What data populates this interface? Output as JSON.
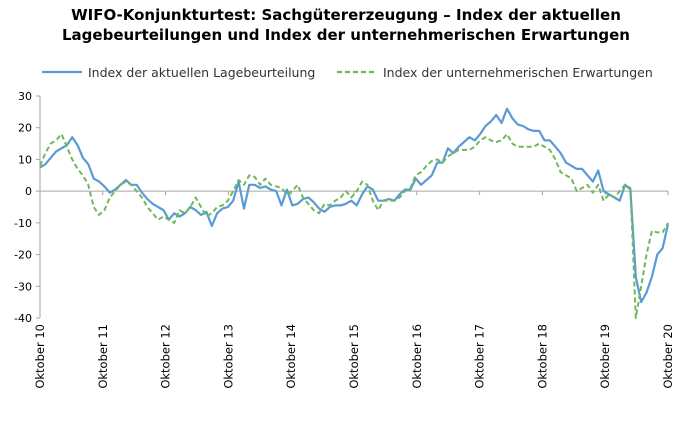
{
  "chart_data": {
    "type": "line",
    "title": "WIFO-Konjunkturtest: Sachgütererzeugung – Index der aktuellen Lagebeurteilungen und Index der unternehmerischen Erwartungen",
    "title_lines": [
      "WIFO-Konjunkturtest: Sachgütererzeugung – Index der aktuellen",
      "Lagebeurteilungen und Index der unternehmerischen Erwartungen"
    ],
    "xlabel": "",
    "ylabel": "",
    "ylim": [
      -40,
      30
    ],
    "yticks": [
      30,
      20,
      10,
      0,
      -10,
      -20,
      -30,
      -40
    ],
    "x_tick_labels": [
      "Oktober 10",
      "Oktober 11",
      "Oktober 12",
      "Oktober 13",
      "Oktober 14",
      "Oktober 15",
      "Oktober 16",
      "Oktober 17",
      "Oktober 18",
      "Oktober 19",
      "Oktober 20"
    ],
    "x_range_months": "Oktober 2010 – Oktober 2020 (monatlich)",
    "grid": false,
    "legend_position": "top",
    "series": [
      {
        "name": "Index der aktuellen Lagebeurteilung",
        "color": "#5b9bd5",
        "dash": "solid",
        "values": [
          7.5,
          8.5,
          10.5,
          12.5,
          13.5,
          14.5,
          17,
          14.5,
          10.5,
          8.5,
          4,
          3,
          1.5,
          -0.5,
          0.5,
          2,
          3.5,
          2,
          2,
          -0.5,
          -2.5,
          -4,
          -5,
          -6,
          -9,
          -7,
          -8,
          -7,
          -5,
          -6,
          -7.5,
          -6.5,
          -11,
          -7,
          -5.5,
          -5,
          -3,
          3,
          -5.5,
          2,
          2,
          1,
          1.5,
          0.5,
          0,
          -4.5,
          0.5,
          -4.5,
          -4,
          -2.5,
          -2,
          -3.5,
          -5.5,
          -6.5,
          -5,
          -4.5,
          -4.5,
          -4,
          -3,
          -4.5,
          -1,
          1.5,
          0.5,
          -3,
          -3,
          -2.5,
          -3,
          -1,
          0.5,
          0.5,
          4,
          2,
          3.5,
          5,
          9,
          9,
          13.5,
          12,
          14,
          15.5,
          17,
          16,
          18,
          20.5,
          22,
          24,
          21.5,
          26,
          23,
          21,
          20.5,
          19.5,
          19,
          19,
          16,
          16,
          14,
          12,
          9,
          8,
          7,
          7,
          5,
          3,
          6.5,
          0,
          -1,
          -2,
          -3,
          2,
          0.5,
          -27,
          -35,
          -32,
          -27,
          -20,
          -18,
          -10.5
        ]
      },
      {
        "name": "Index der unternehmerischen Erwartungen",
        "color": "#70b85b",
        "dash": "dashed",
        "values": [
          8,
          12,
          15,
          16,
          18,
          14,
          10,
          7,
          5,
          2,
          -5,
          -7.5,
          -6,
          -2,
          0,
          2,
          3,
          2,
          0,
          -2,
          -5,
          -7,
          -9,
          -8,
          -9,
          -10,
          -6,
          -7,
          -5,
          -2,
          -5,
          -8,
          -7,
          -5,
          -4.5,
          -3,
          0,
          3.5,
          2,
          5,
          4.5,
          2,
          4,
          2,
          1.5,
          1,
          -1,
          0,
          2,
          -2,
          -4,
          -6,
          -7,
          -4,
          -4.5,
          -3,
          -2,
          0,
          -2,
          0,
          3,
          2,
          -3,
          -6,
          -3,
          -3,
          -3,
          -2,
          0,
          1,
          5,
          6,
          8,
          9.5,
          10,
          9,
          11,
          12,
          13,
          13,
          13,
          14,
          16,
          17,
          16,
          15.5,
          16,
          18,
          15,
          14,
          14,
          14,
          14,
          15,
          14,
          13,
          10,
          6,
          5,
          4,
          0,
          1,
          2,
          -0.5,
          2,
          -3,
          -1,
          -2,
          0,
          2,
          1,
          -40,
          -30,
          -20,
          -12.5,
          -13,
          -13,
          -10
        ]
      }
    ]
  }
}
